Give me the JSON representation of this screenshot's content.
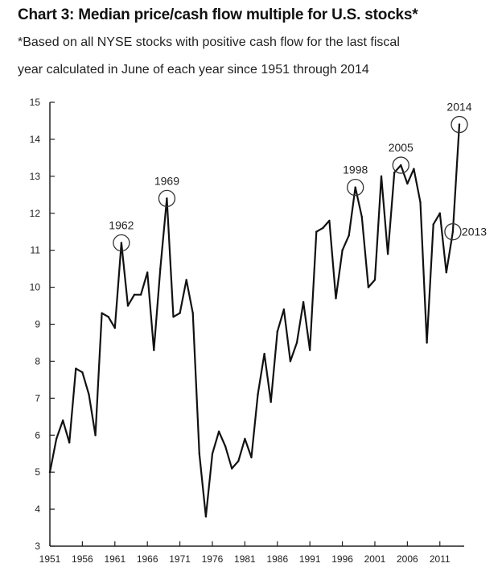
{
  "chart_data": {
    "type": "line",
    "title": "Chart 3: Median price/cash flow multiple for U.S. stocks*",
    "subtitle_line1": "*Based on all NYSE stocks with positive cash flow for the last fiscal",
    "subtitle_line2": "year calculated in June of each year since 1951 through 2014",
    "xlabel": "",
    "ylabel": "",
    "xlim": [
      1951,
      2014
    ],
    "ylim": [
      3,
      15
    ],
    "x_ticks": [
      1951,
      1956,
      1961,
      1966,
      1971,
      1976,
      1981,
      1986,
      1991,
      1996,
      2001,
      2006,
      2011
    ],
    "y_ticks": [
      3,
      4,
      5,
      6,
      7,
      8,
      9,
      10,
      11,
      12,
      13,
      14,
      15
    ],
    "grid": false,
    "series": [
      {
        "x": [
          1951,
          1952,
          1953,
          1954,
          1955,
          1956,
          1957,
          1958,
          1959,
          1960,
          1961,
          1962,
          1963,
          1964,
          1965,
          1966,
          1967,
          1968,
          1969,
          1970,
          1971,
          1972,
          1973,
          1974,
          1975,
          1976,
          1977,
          1978,
          1979,
          1980,
          1981,
          1982,
          1983,
          1984,
          1985,
          1986,
          1987,
          1988,
          1989,
          1990,
          1991,
          1992,
          1993,
          1994,
          1995,
          1996,
          1997,
          1998,
          1999,
          2000,
          2001,
          2002,
          2003,
          2004,
          2005,
          2006,
          2007,
          2008,
          2009,
          2010,
          2011,
          2012,
          2013,
          2014
        ],
        "y": [
          5.0,
          5.9,
          6.4,
          5.8,
          7.8,
          7.7,
          7.1,
          6.0,
          9.3,
          9.2,
          8.9,
          11.2,
          9.5,
          9.8,
          9.8,
          10.4,
          8.3,
          10.5,
          12.4,
          9.2,
          9.3,
          10.2,
          9.3,
          5.5,
          3.8,
          5.5,
          6.1,
          5.7,
          5.1,
          5.3,
          5.9,
          5.4,
          7.1,
          8.2,
          6.9,
          8.8,
          9.4,
          8.0,
          8.5,
          9.6,
          8.3,
          11.5,
          11.6,
          11.8,
          9.7,
          11.0,
          11.4,
          12.7,
          11.9,
          10.0,
          10.2,
          13.0,
          10.9,
          13.1,
          13.3,
          12.8,
          13.2,
          12.3,
          8.5,
          11.7,
          12.0,
          10.4,
          11.5,
          14.4
        ]
      }
    ],
    "annotations": [
      {
        "label": "1962",
        "x": 1962,
        "y": 11.2,
        "label_side": "above"
      },
      {
        "label": "1969",
        "x": 1969,
        "y": 12.4,
        "label_side": "above"
      },
      {
        "label": "1998",
        "x": 1998,
        "y": 12.7,
        "label_side": "above"
      },
      {
        "label": "2005",
        "x": 2005,
        "y": 13.3,
        "label_side": "above"
      },
      {
        "label": "2013",
        "x": 2013,
        "y": 11.5,
        "label_side": "right"
      },
      {
        "label": "2014",
        "x": 2014,
        "y": 14.4,
        "label_side": "above"
      }
    ]
  }
}
